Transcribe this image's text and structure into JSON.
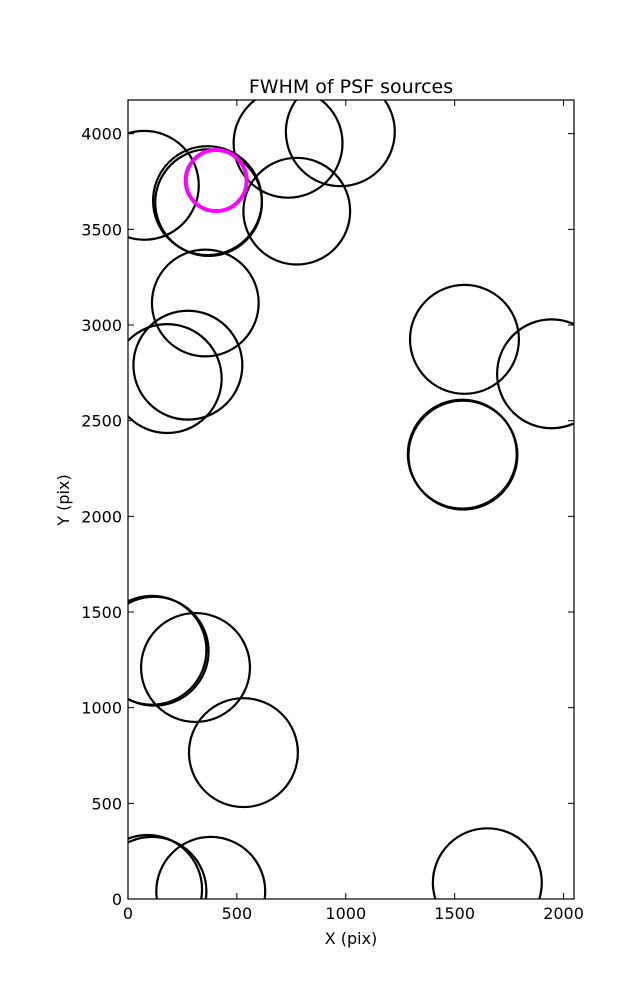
{
  "chart_data": {
    "type": "scatter",
    "title": "FWHM of PSF sources",
    "xlabel": "X (pix)",
    "ylabel": "Y (pix)",
    "xlim": [
      0,
      2048
    ],
    "ylim": [
      0,
      4176
    ],
    "xticks": [
      0,
      500,
      1000,
      1500,
      2000
    ],
    "yticks": [
      0,
      500,
      1000,
      1500,
      2000,
      2500,
      3000,
      3500,
      4000
    ],
    "grid": false,
    "series": [
      {
        "marker": "circle",
        "color": "#000000",
        "points": [
          {
            "x": 75,
            "y": 3730,
            "fwhm": 250
          },
          {
            "x": 365,
            "y": 3650,
            "fwhm": 250
          },
          {
            "x": 370,
            "y": 3640,
            "fwhm": 245
          },
          {
            "x": 735,
            "y": 3950,
            "fwhm": 250
          },
          {
            "x": 975,
            "y": 4010,
            "fwhm": 250
          },
          {
            "x": 775,
            "y": 3595,
            "fwhm": 245
          },
          {
            "x": 355,
            "y": 3115,
            "fwhm": 245
          },
          {
            "x": 275,
            "y": 2790,
            "fwhm": 250
          },
          {
            "x": 180,
            "y": 2720,
            "fwhm": 250
          },
          {
            "x": 1545,
            "y": 2925,
            "fwhm": 250
          },
          {
            "x": 1945,
            "y": 2745,
            "fwhm": 250
          },
          {
            "x": 1535,
            "y": 2325,
            "fwhm": 250
          },
          {
            "x": 1538,
            "y": 2320,
            "fwhm": 250
          },
          {
            "x": 110,
            "y": 1300,
            "fwhm": 250
          },
          {
            "x": 120,
            "y": 1295,
            "fwhm": 250
          },
          {
            "x": 310,
            "y": 1210,
            "fwhm": 250
          },
          {
            "x": 530,
            "y": 765,
            "fwhm": 250
          },
          {
            "x": 90,
            "y": 50,
            "fwhm": 250
          },
          {
            "x": 110,
            "y": 40,
            "fwhm": 250
          },
          {
            "x": 380,
            "y": 40,
            "fwhm": 250
          },
          {
            "x": 1650,
            "y": 85,
            "fwhm": 250
          }
        ]
      },
      {
        "marker": "circle",
        "color": "#ff00ff",
        "points": [
          {
            "x": 405,
            "y": 3755,
            "fwhm": 140
          }
        ]
      }
    ]
  }
}
